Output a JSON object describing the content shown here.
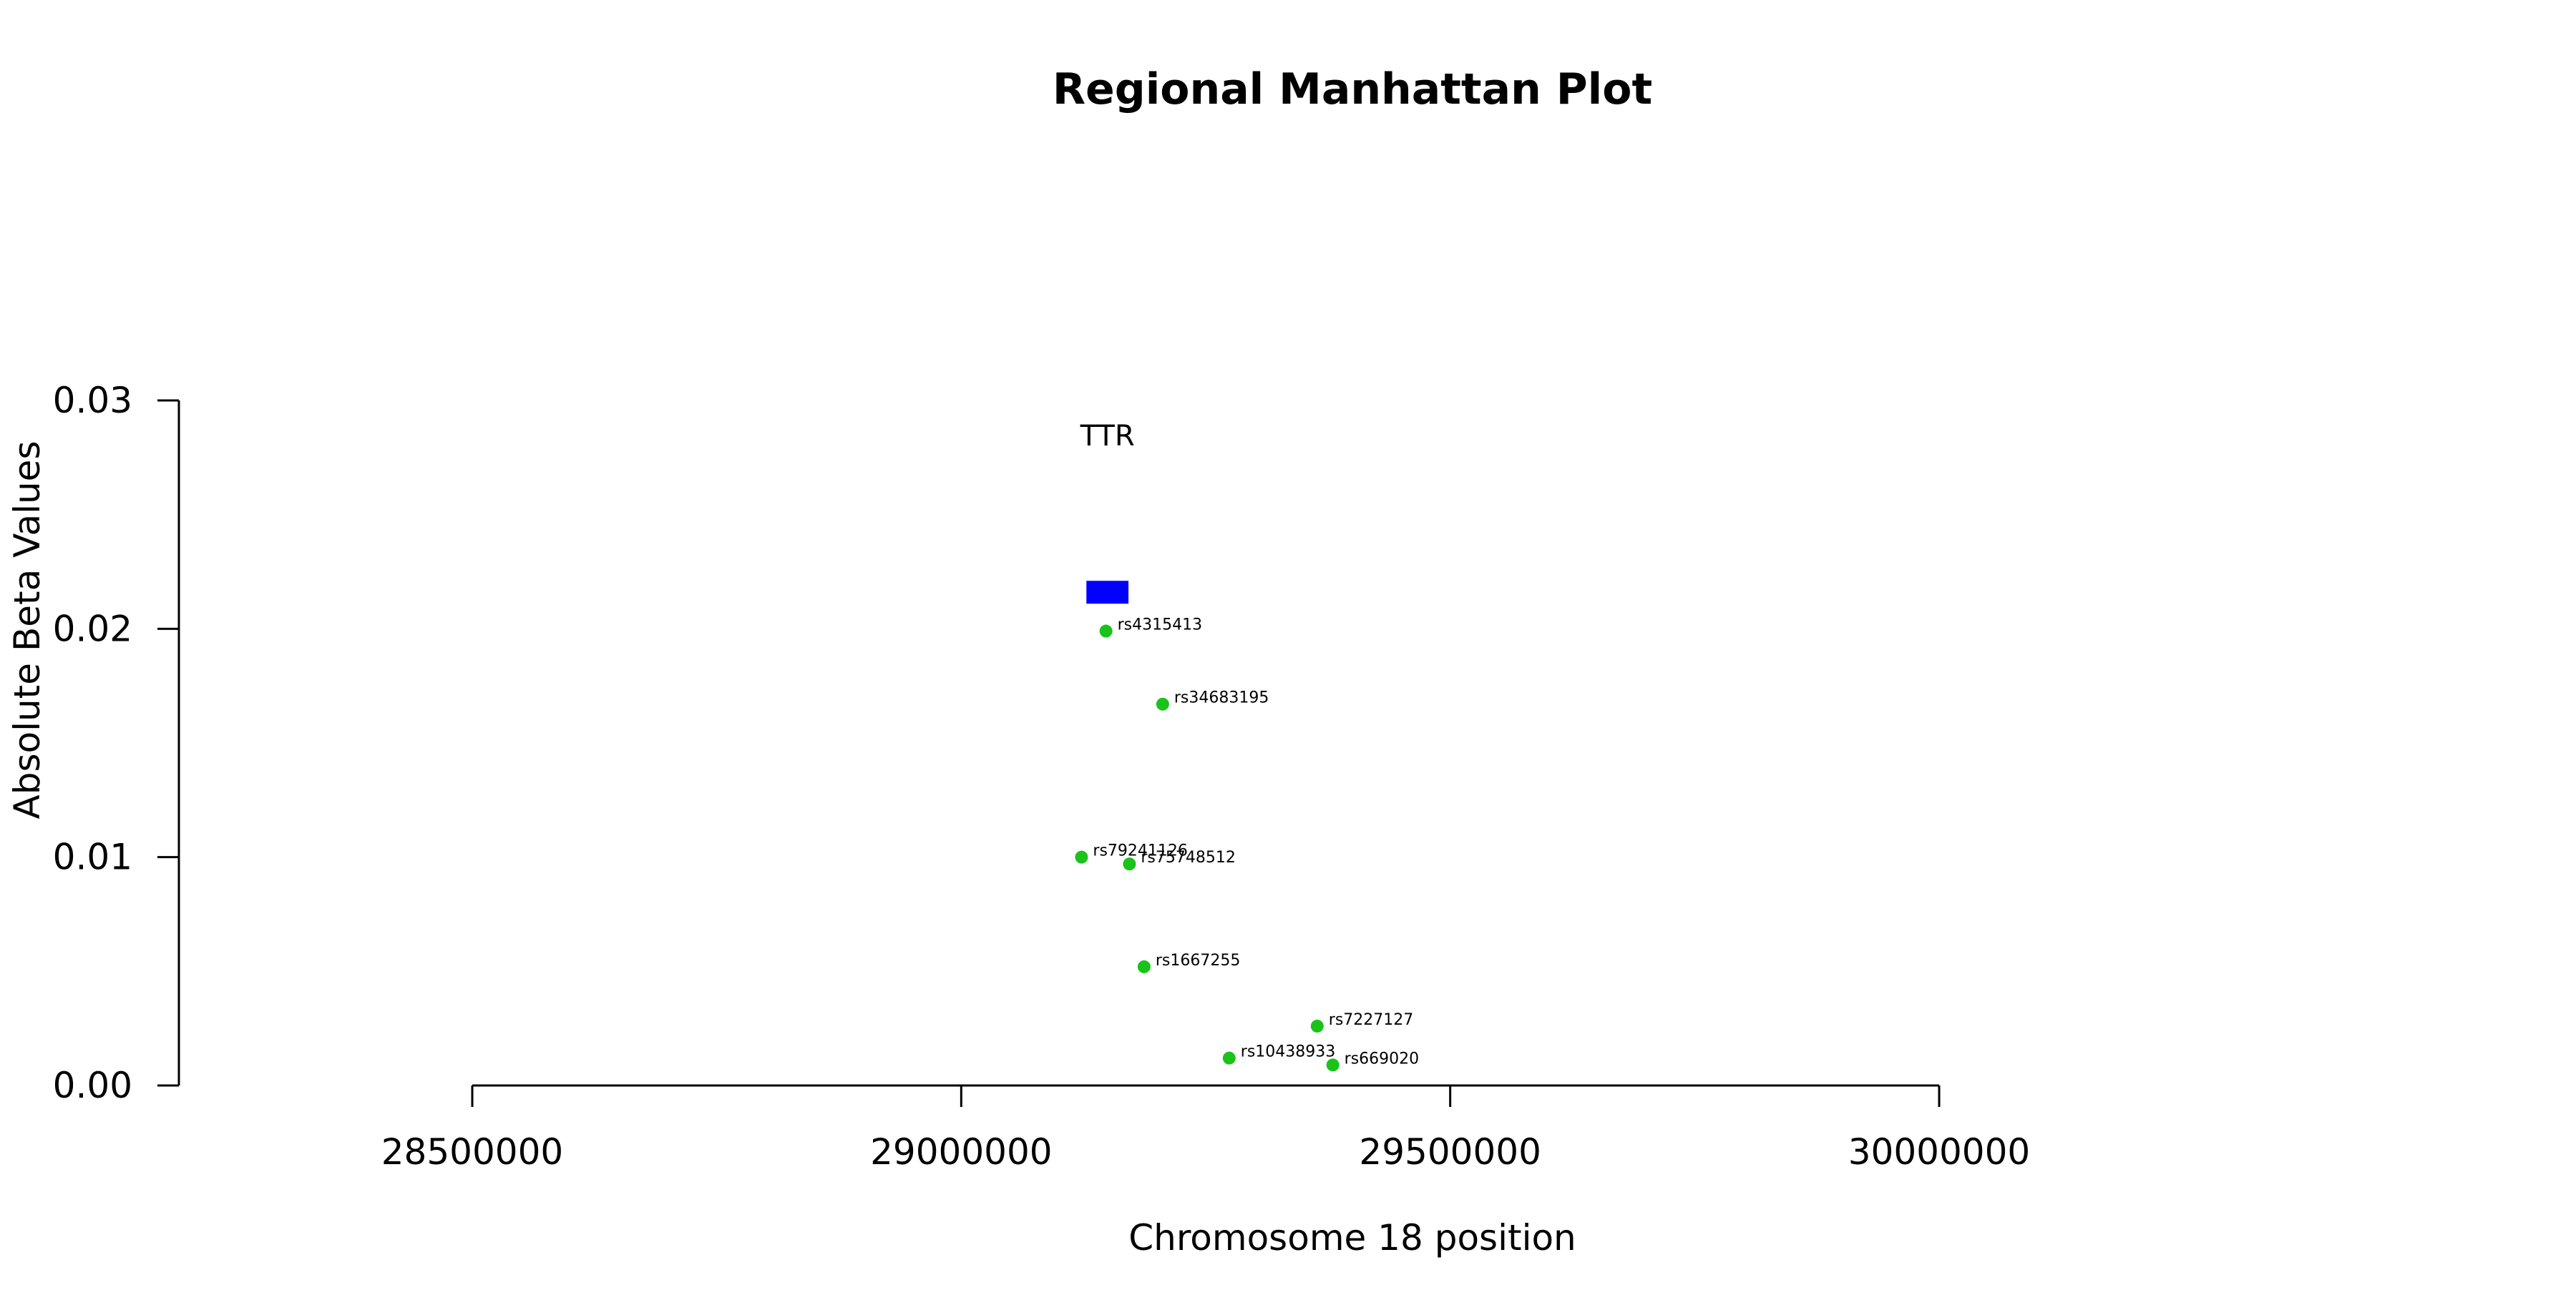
{
  "chart_data": {
    "type": "scatter",
    "title": "Regional Manhattan Plot",
    "xlabel": "Chromosome 18 position",
    "ylabel": "Absolute Beta Values",
    "xlim": [
      28200000,
      30600000
    ],
    "ylim": [
      0,
      0.03
    ],
    "x_ticks": [
      28500000,
      29000000,
      29500000,
      30000000
    ],
    "x_tick_labels": [
      "28500000",
      "29000000",
      "29500000",
      "30000000"
    ],
    "y_ticks": [
      0,
      0.01,
      0.02,
      0.03
    ],
    "y_tick_labels": [
      "0.00",
      "0.01",
      "0.02",
      "0.03"
    ],
    "grid": false,
    "point_color": "#19c319",
    "points": [
      {
        "label": "rs4315413",
        "x": 29148000,
        "y": 0.0199
      },
      {
        "label": "rs34683195",
        "x": 29206000,
        "y": 0.0167
      },
      {
        "label": "rs79241126",
        "x": 29123000,
        "y": 0.01
      },
      {
        "label": "rs75748512",
        "x": 29172000,
        "y": 0.0097
      },
      {
        "label": "rs1667255",
        "x": 29187000,
        "y": 0.0052
      },
      {
        "label": "rs7227127",
        "x": 29364000,
        "y": 0.0026
      },
      {
        "label": "rs10438933",
        "x": 29274000,
        "y": 0.0012
      },
      {
        "label": "rs669020",
        "x": 29380000,
        "y": 0.0009
      }
    ],
    "genes": [
      {
        "name": "TTR",
        "start": 29128000,
        "end": 29171000,
        "y": 0.0216,
        "color": "#0000ff"
      }
    ]
  }
}
